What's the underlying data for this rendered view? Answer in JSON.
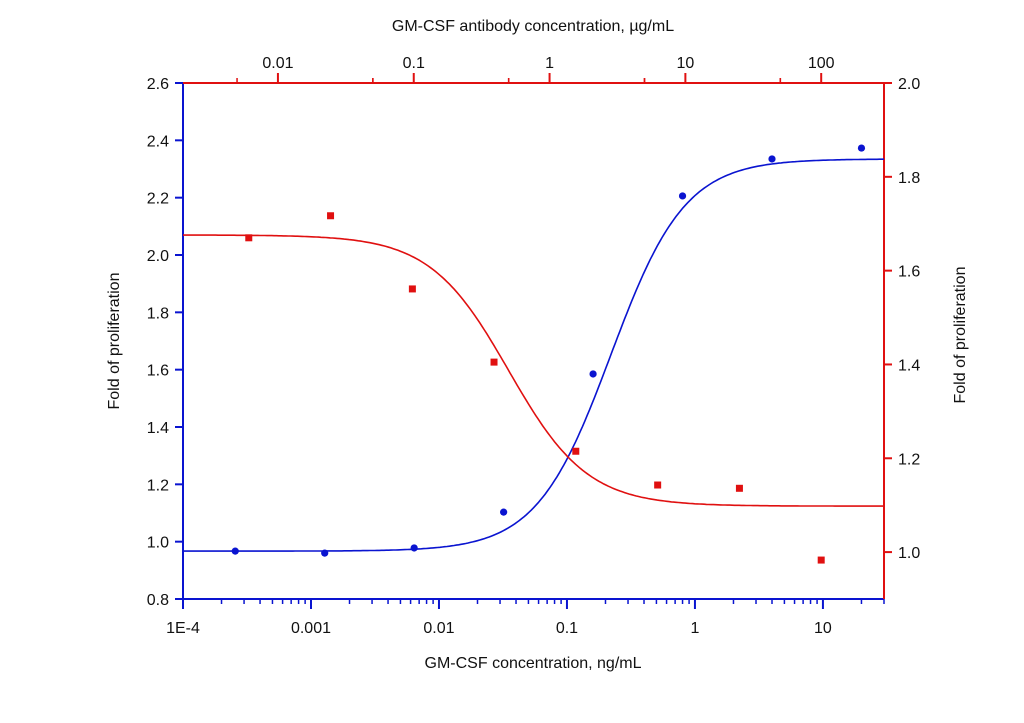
{
  "chart_data": {
    "type": "scatter",
    "title": "",
    "xlabel": "GM-CSF concentration, ng/mL",
    "ylabel": "Fold of proliferation",
    "x2label": "GM-CSF antibody concentration, µg/mL",
    "y2label": "Fold of proliferation",
    "xscale": "log",
    "xlim": [
      0.0001,
      30
    ],
    "x2scale": "log",
    "x2lim": [
      0.002,
      290
    ],
    "ylim": [
      0.8,
      2.6
    ],
    "y2lim": [
      0.9,
      2.0
    ],
    "xticks": [
      "1E-4",
      "0.001",
      "0.01",
      "0.1",
      "1",
      "10"
    ],
    "x2ticks": [
      "0.01",
      "0.1",
      "1",
      "10",
      "100"
    ],
    "yticks": [
      "0.8",
      "1.0",
      "1.2",
      "1.4",
      "1.6",
      "1.8",
      "2.0",
      "2.2",
      "2.4",
      "2.6"
    ],
    "y2ticks": [
      "1.0",
      "1.2",
      "1.4",
      "1.6",
      "1.8",
      "2.0"
    ],
    "grid": false,
    "series": [
      {
        "axis": "bottom-left",
        "color": "#0a14d0",
        "marker": "circle",
        "x": [
          0.000256,
          0.00128,
          0.0064,
          0.032,
          0.16,
          0.8,
          4,
          20
        ],
        "y": [
          0.967,
          0.96,
          0.978,
          1.103,
          1.585,
          2.206,
          2.335,
          2.373
        ],
        "fit": {
          "model": "4PL",
          "bottom": 0.967,
          "top": 2.335,
          "ec50": 0.22,
          "hill": 1.5
        }
      },
      {
        "axis": "top-right",
        "color": "#e01010",
        "marker": "square",
        "x": [
          0.0061,
          0.0244,
          0.0977,
          0.39,
          1.56,
          6.25,
          25,
          100
        ],
        "y": [
          1.67,
          1.717,
          1.561,
          1.405,
          1.215,
          1.143,
          1.136,
          0.983
        ],
        "fit": {
          "model": "4PL",
          "bottom": 1.098,
          "top": 1.676,
          "ec50": 0.5,
          "hill": 1.5
        }
      }
    ]
  }
}
